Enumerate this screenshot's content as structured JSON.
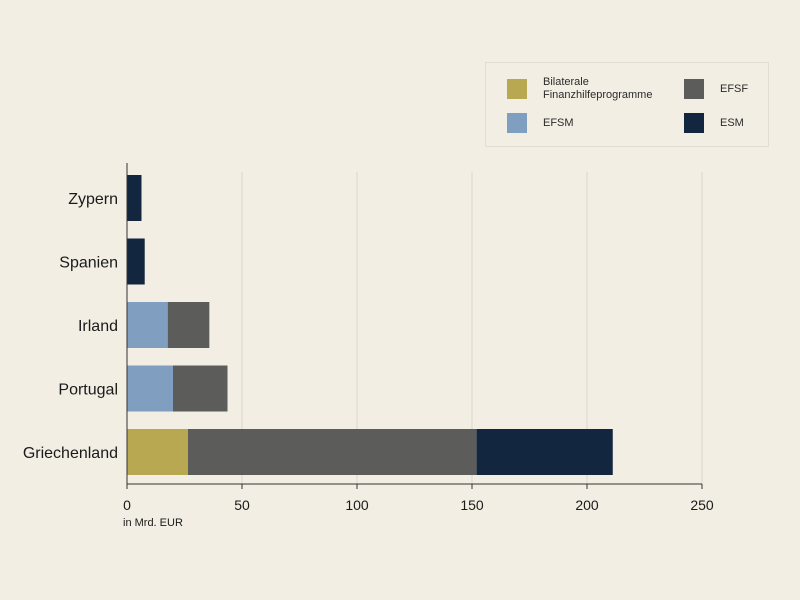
{
  "chart_data": {
    "type": "bar",
    "orientation": "horizontal",
    "stacked": true,
    "categories": [
      "Zypern",
      "Spanien",
      "Irland",
      "Portugal",
      "Griechenland"
    ],
    "series": [
      {
        "name": "Bilaterale\nFinanzhilfeprogramme",
        "color": "#b8a852",
        "values": [
          0,
          0,
          0,
          0,
          26.5
        ]
      },
      {
        "name": "EFSM",
        "color": "#809fc0",
        "values": [
          0,
          0,
          17.7,
          20,
          0
        ]
      },
      {
        "name": "EFSF",
        "color": "#5c5c5a",
        "values": [
          0,
          0,
          18.1,
          23.7,
          125.5
        ]
      },
      {
        "name": "ESM",
        "color": "#13263f",
        "values": [
          6.3,
          7.7,
          0,
          0,
          59.2
        ]
      }
    ],
    "xticks": [
      0,
      50,
      100,
      150,
      200,
      250
    ],
    "xlim": [
      0,
      250
    ],
    "xlabel": "in Mrd. EUR",
    "grid": "vertical",
    "legend_position": "top-right"
  }
}
